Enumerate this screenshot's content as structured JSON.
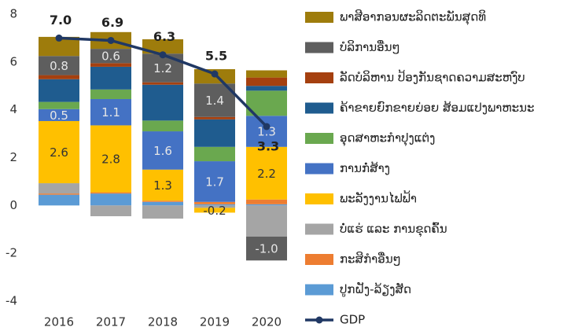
{
  "chart_data": {
    "type": "bar",
    "stacked": true,
    "categories": [
      "2016",
      "2017",
      "2018",
      "2019",
      "2020"
    ],
    "ylim": [
      -4,
      8
    ],
    "yticks": [
      8,
      6,
      4,
      2,
      0,
      -2,
      -4
    ],
    "series": [
      {
        "name": "ພາສີອາກອນຜະລິດຕະພັນສຸດທິ",
        "color": "#9e7c0c",
        "values": [
          0.8,
          0.7,
          0.6,
          0.6,
          0.3
        ]
      },
      {
        "name": "ບໍລິການອື່ນໆ",
        "color": "#5e5e5e",
        "values": [
          0.8,
          0.6,
          1.2,
          1.4,
          -1.0
        ],
        "value_labels": [
          "0.8",
          "0.6",
          "1.2",
          "1.4",
          "-1.0"
        ]
      },
      {
        "name": "ລັດບໍລິຫານ ປ້ອງກັນຊາດຄວາມສະຫງົບ",
        "color": "#a5400f",
        "values": [
          0.17,
          0.15,
          0.1,
          0.1,
          0.35
        ]
      },
      {
        "name": "ຄ້າຂາຍຍົກຂາຍຍ່ອຍ ສ້ອມແປງພາຫະນະ",
        "color": "#1f5c8f",
        "values": [
          0.95,
          0.95,
          1.5,
          1.15,
          0.2
        ]
      },
      {
        "name": "ອຸດສາຫະກຳປຸງແຕ່ງ",
        "color": "#6aa84f",
        "values": [
          0.3,
          0.4,
          0.45,
          0.6,
          1.05
        ]
      },
      {
        "name": "ການກໍ່ສ້າງ",
        "color": "#4472c4",
        "values": [
          0.5,
          1.1,
          1.6,
          1.7,
          1.3
        ],
        "value_labels": [
          "0.5",
          "1.1",
          "1.6",
          "1.7",
          "1.3"
        ]
      },
      {
        "name": "ພະລັງງານໄຟຟ້າ",
        "color": "#ffc000",
        "values": [
          2.6,
          2.8,
          1.3,
          -0.2,
          2.2
        ],
        "value_labels": [
          "2.6",
          "2.8",
          "1.3",
          "-0.2",
          "2.2"
        ]
      },
      {
        "name": "ບໍ່ແຮ່ ແລະ ການຂຸດຄົ້ນ",
        "color": "#a5a5a5",
        "values": [
          0.43,
          -0.45,
          -0.55,
          -0.1,
          -1.3
        ]
      },
      {
        "name": "ກະສິກຳອື່ນໆ",
        "color": "#ed7d31",
        "values": [
          0.05,
          0.05,
          0.05,
          0.1,
          0.2
        ]
      },
      {
        "name": "ປູກຝັງ-ລ້ຽງສັດ",
        "color": "#5b9bd5",
        "values": [
          0.45,
          0.5,
          0.15,
          0.05,
          0.05
        ]
      },
      {
        "name": "GDP",
        "type": "line",
        "color": "#203864",
        "values": [
          7.0,
          6.9,
          6.3,
          5.5,
          3.3
        ],
        "value_labels": [
          "7.0",
          "6.9",
          "6.3",
          "5.5",
          "3.3"
        ]
      }
    ]
  }
}
